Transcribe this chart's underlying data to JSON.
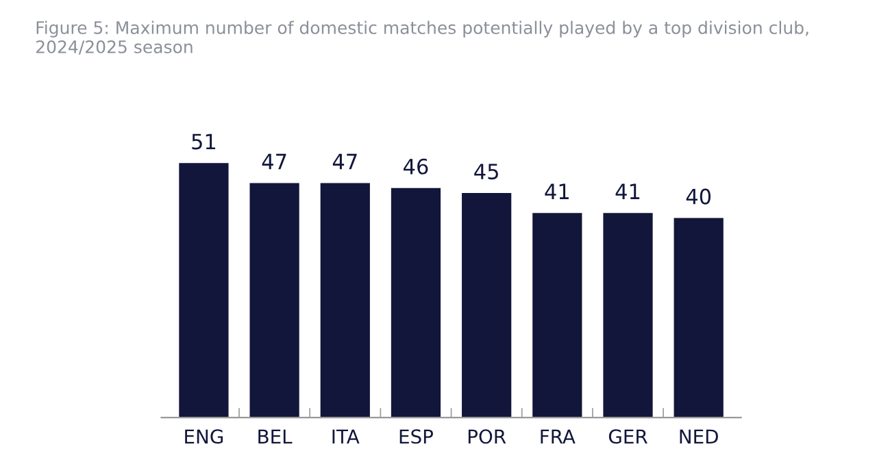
{
  "chart_data": {
    "type": "bar",
    "title": "Figure 5: Maximum number of domestic matches potentially played by a top division club, 2024/2025 season",
    "categories": [
      "ENG",
      "BEL",
      "ITA",
      "ESP",
      "POR",
      "FRA",
      "GER",
      "NED"
    ],
    "values": [
      51,
      47,
      47,
      46,
      45,
      41,
      41,
      40
    ],
    "color": "#12163a",
    "tick_labels": "x",
    "data_labels": true,
    "grid": false,
    "legend": false
  }
}
